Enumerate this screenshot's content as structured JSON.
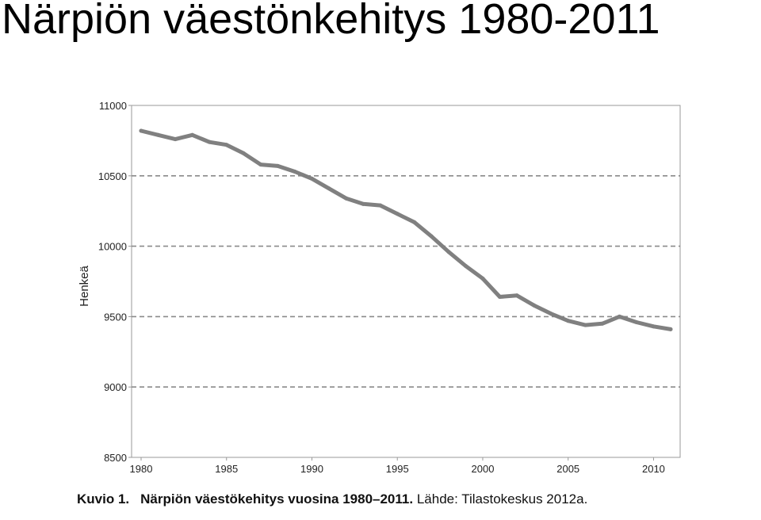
{
  "slide": {
    "title": "Närpiön väestönkehitys 1980-2011"
  },
  "caption": {
    "label": "Kuvio 1.",
    "text": "Närpiön väestökehitys vuosina 1980–2011.",
    "source": "Lähde: Tilastokeskus 2012a."
  },
  "colors": {
    "line": "#808080",
    "grid": "#8a8a8a",
    "frame": "#9a9a9a"
  },
  "chart_data": {
    "type": "line",
    "title": "",
    "xlabel": "",
    "ylabel": "Henkeä",
    "xlim": [
      1980,
      2011
    ],
    "ylim": [
      8500,
      11000
    ],
    "grid": "horizontal-dashed",
    "x_ticks": [
      1980,
      1985,
      1990,
      1995,
      2000,
      2005,
      2010
    ],
    "y_ticks": [
      8500,
      9000,
      9500,
      10000,
      10500,
      11000
    ],
    "series": [
      {
        "x": [
          1980,
          1981,
          1982,
          1983,
          1984,
          1985,
          1986,
          1987,
          1988,
          1989,
          1990,
          1991,
          1992,
          1993,
          1994,
          1995,
          1996,
          1997,
          1998,
          1999,
          2000,
          2001,
          2002,
          2003,
          2004,
          2005,
          2006,
          2007,
          2008,
          2009,
          2010,
          2011
        ],
        "values": [
          10820,
          10790,
          10760,
          10790,
          10740,
          10720,
          10660,
          10580,
          10570,
          10530,
          10480,
          10410,
          10340,
          10300,
          10290,
          10230,
          10170,
          10070,
          9960,
          9860,
          9770,
          9640,
          9650,
          9580,
          9520,
          9470,
          9440,
          9450,
          9500,
          9460,
          9430,
          9410
        ]
      }
    ]
  }
}
